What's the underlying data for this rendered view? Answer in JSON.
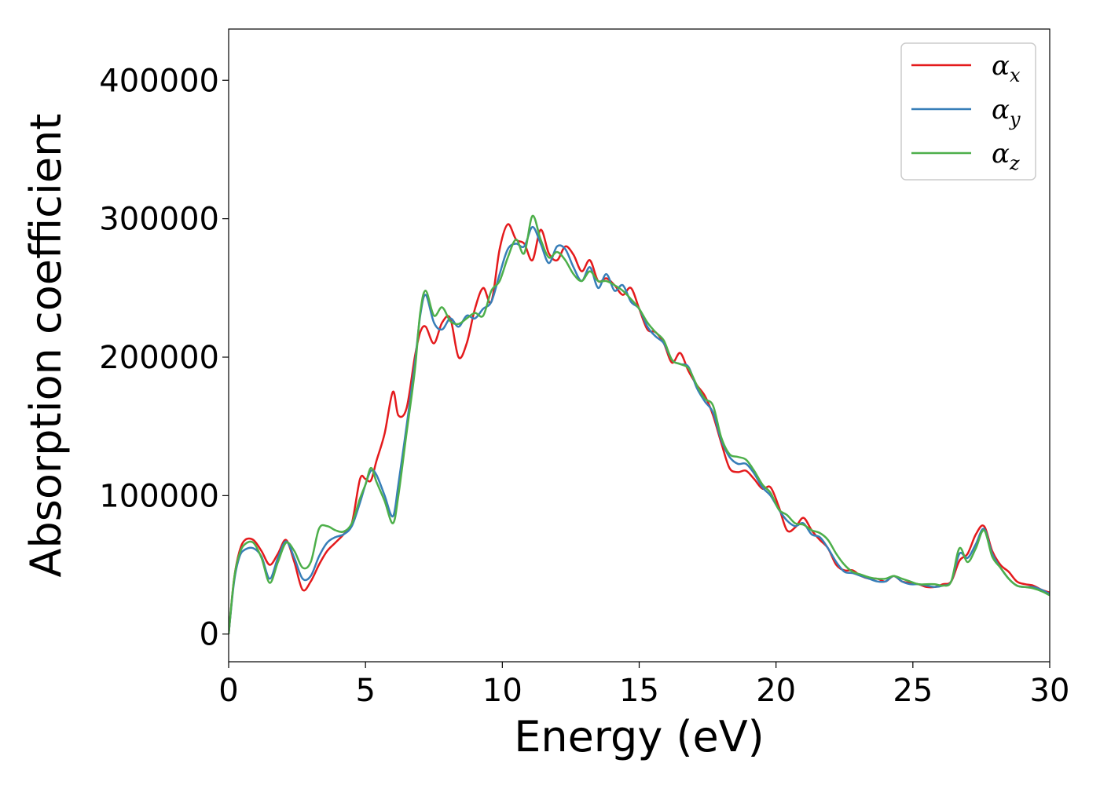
{
  "chart_data": {
    "type": "line",
    "xlabel": "Energy (eV)",
    "ylabel": "Absorption coefficient",
    "xlim": [
      0,
      30
    ],
    "ylim": [
      -20000,
      437000
    ],
    "xticks": [
      0,
      5,
      10,
      15,
      20,
      25,
      30
    ],
    "yticks": [
      0,
      100000,
      200000,
      300000,
      400000
    ],
    "grid": false,
    "legend_position": "top-right",
    "series": [
      {
        "name": "α_x",
        "label_base": "α",
        "label_sub": "x",
        "color": "#e41a1c",
        "x": [
          0,
          0.2,
          0.4,
          0.6,
          0.9,
          1.2,
          1.5,
          1.8,
          2.1,
          2.4,
          2.7,
          3.0,
          3.3,
          3.6,
          3.9,
          4.2,
          4.5,
          4.8,
          5.0,
          5.2,
          5.4,
          5.7,
          6.0,
          6.2,
          6.5,
          6.8,
          7.0,
          7.2,
          7.5,
          7.8,
          8.1,
          8.4,
          8.7,
          9.0,
          9.3,
          9.6,
          9.9,
          10.2,
          10.5,
          10.8,
          11.1,
          11.4,
          11.7,
          12.0,
          12.3,
          12.6,
          12.9,
          13.2,
          13.5,
          13.8,
          14.1,
          14.4,
          14.7,
          15.0,
          15.3,
          15.6,
          15.9,
          16.2,
          16.5,
          16.8,
          17.1,
          17.4,
          17.7,
          18.0,
          18.3,
          18.6,
          18.9,
          19.2,
          19.5,
          19.8,
          20.1,
          20.4,
          20.7,
          21.0,
          21.3,
          21.6,
          21.9,
          22.2,
          22.5,
          22.8,
          23.1,
          23.4,
          23.7,
          24.0,
          24.3,
          24.6,
          24.9,
          25.2,
          25.5,
          25.8,
          26.1,
          26.4,
          26.7,
          27.0,
          27.3,
          27.6,
          27.9,
          28.2,
          28.5,
          28.8,
          29.1,
          29.4,
          29.7,
          30.0
        ],
        "y": [
          0,
          40000,
          60000,
          68000,
          68000,
          60000,
          50000,
          58000,
          68000,
          52000,
          32000,
          38000,
          50000,
          60000,
          66000,
          72000,
          80000,
          112000,
          112000,
          111000,
          125000,
          145000,
          175000,
          158000,
          163000,
          200000,
          218000,
          222000,
          210000,
          225000,
          228000,
          200000,
          210000,
          235000,
          250000,
          240000,
          278000,
          296000,
          285000,
          282000,
          270000,
          292000,
          275000,
          270000,
          280000,
          274000,
          262000,
          270000,
          255000,
          257000,
          252000,
          245000,
          250000,
          235000,
          220000,
          218000,
          210000,
          196000,
          203000,
          190000,
          180000,
          172000,
          158000,
          138000,
          120000,
          117000,
          118000,
          112000,
          105000,
          106000,
          92000,
          75000,
          77000,
          84000,
          75000,
          68000,
          62000,
          50000,
          46000,
          46000,
          42000,
          40000,
          40000,
          38000,
          42000,
          38000,
          37000,
          36000,
          34000,
          34000,
          36000,
          38000,
          53000,
          58000,
          72000,
          78000,
          60000,
          50000,
          45000,
          38000,
          36000,
          35000,
          32000,
          30000
        ]
      },
      {
        "name": "α_y",
        "label_base": "α",
        "label_sub": "y",
        "color": "#377eb8",
        "x": [
          0,
          0.2,
          0.4,
          0.6,
          0.9,
          1.2,
          1.5,
          1.8,
          2.1,
          2.4,
          2.7,
          3.0,
          3.3,
          3.6,
          3.9,
          4.2,
          4.5,
          4.8,
          5.0,
          5.2,
          5.4,
          5.7,
          6.0,
          6.2,
          6.5,
          6.8,
          7.0,
          7.2,
          7.5,
          7.8,
          8.1,
          8.4,
          8.7,
          9.0,
          9.3,
          9.6,
          9.9,
          10.2,
          10.5,
          10.8,
          11.1,
          11.4,
          11.7,
          12.0,
          12.3,
          12.6,
          12.9,
          13.2,
          13.5,
          13.8,
          14.1,
          14.4,
          14.7,
          15.0,
          15.3,
          15.6,
          15.9,
          16.2,
          16.5,
          16.8,
          17.1,
          17.4,
          17.7,
          18.0,
          18.3,
          18.6,
          18.9,
          19.2,
          19.5,
          19.8,
          20.1,
          20.4,
          20.7,
          21.0,
          21.3,
          21.6,
          21.9,
          22.2,
          22.5,
          22.8,
          23.1,
          23.4,
          23.7,
          24.0,
          24.3,
          24.6,
          24.9,
          25.2,
          25.5,
          25.8,
          26.1,
          26.4,
          26.7,
          27.0,
          27.3,
          27.6,
          27.9,
          28.2,
          28.5,
          28.8,
          29.1,
          29.4,
          29.7,
          30.0
        ],
        "y": [
          0,
          38000,
          56000,
          61000,
          62000,
          56000,
          40000,
          55000,
          67000,
          55000,
          40000,
          42000,
          56000,
          66000,
          70000,
          72000,
          78000,
          95000,
          108000,
          118000,
          115000,
          100000,
          85000,
          108000,
          150000,
          195000,
          230000,
          245000,
          225000,
          220000,
          228000,
          222000,
          230000,
          228000,
          235000,
          240000,
          260000,
          278000,
          282000,
          280000,
          294000,
          282000,
          268000,
          280000,
          278000,
          265000,
          255000,
          265000,
          250000,
          260000,
          248000,
          252000,
          240000,
          235000,
          222000,
          215000,
          210000,
          198000,
          195000,
          193000,
          178000,
          168000,
          160000,
          140000,
          128000,
          123000,
          123000,
          116000,
          106000,
          100000,
          90000,
          82000,
          78000,
          80000,
          72000,
          70000,
          62000,
          52000,
          45000,
          44000,
          42000,
          40000,
          38000,
          38000,
          42000,
          38000,
          36000,
          36000,
          35000,
          34000,
          35000,
          38000,
          58000,
          55000,
          65000,
          76000,
          58000,
          48000,
          40000,
          35000,
          34000,
          34000,
          32000,
          29000
        ]
      },
      {
        "name": "α_z",
        "label_base": "α",
        "label_sub": "z",
        "color": "#4daf4a",
        "x": [
          0,
          0.2,
          0.4,
          0.6,
          0.9,
          1.2,
          1.5,
          1.8,
          2.1,
          2.4,
          2.7,
          3.0,
          3.3,
          3.6,
          3.9,
          4.2,
          4.5,
          4.8,
          5.0,
          5.2,
          5.4,
          5.7,
          6.0,
          6.2,
          6.5,
          6.8,
          7.0,
          7.2,
          7.5,
          7.8,
          8.1,
          8.4,
          8.7,
          9.0,
          9.3,
          9.6,
          9.9,
          10.2,
          10.5,
          10.8,
          11.1,
          11.4,
          11.7,
          12.0,
          12.3,
          12.6,
          12.9,
          13.2,
          13.5,
          13.8,
          14.1,
          14.4,
          14.7,
          15.0,
          15.3,
          15.6,
          15.9,
          16.2,
          16.5,
          16.8,
          17.1,
          17.4,
          17.7,
          18.0,
          18.3,
          18.6,
          18.9,
          19.2,
          19.5,
          19.8,
          20.1,
          20.4,
          20.7,
          21.0,
          21.3,
          21.6,
          21.9,
          22.2,
          22.5,
          22.8,
          23.1,
          23.4,
          23.7,
          24.0,
          24.3,
          24.6,
          24.9,
          25.2,
          25.5,
          25.8,
          26.1,
          26.4,
          26.7,
          27.0,
          27.3,
          27.6,
          27.9,
          28.2,
          28.5,
          28.8,
          29.1,
          29.4,
          29.7,
          30.0
        ],
        "y": [
          0,
          40000,
          58000,
          65000,
          66000,
          55000,
          37000,
          52000,
          66000,
          60000,
          48000,
          52000,
          76000,
          78000,
          75000,
          74000,
          80000,
          98000,
          108000,
          120000,
          110000,
          96000,
          80000,
          100000,
          145000,
          190000,
          232000,
          248000,
          230000,
          236000,
          226000,
          224000,
          228000,
          232000,
          230000,
          248000,
          255000,
          272000,
          285000,
          275000,
          302000,
          285000,
          272000,
          276000,
          270000,
          260000,
          255000,
          262000,
          255000,
          255000,
          252000,
          248000,
          242000,
          235000,
          225000,
          218000,
          212000,
          198000,
          195000,
          192000,
          180000,
          170000,
          165000,
          142000,
          130000,
          128000,
          126000,
          118000,
          108000,
          102000,
          90000,
          86000,
          80000,
          79000,
          75000,
          73000,
          68000,
          58000,
          50000,
          45000,
          43000,
          41000,
          40000,
          40000,
          42000,
          40000,
          38000,
          36000,
          36000,
          36000,
          35000,
          38000,
          62000,
          52000,
          62000,
          75000,
          56000,
          48000,
          40000,
          35000,
          34000,
          33000,
          31000,
          28000
        ]
      }
    ]
  }
}
